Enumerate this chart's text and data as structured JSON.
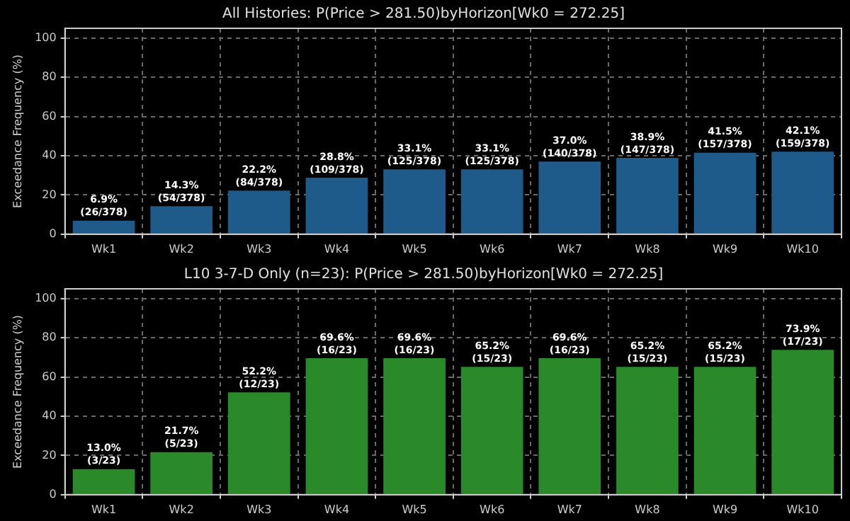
{
  "chart_data": [
    {
      "type": "bar",
      "title": "All Histories: P(Price > 281.50)byHorizon[Wk0 = 272.25]",
      "ylabel": "Exceedance Frequency (%)",
      "categories": [
        "Wk1",
        "Wk2",
        "Wk3",
        "Wk4",
        "Wk5",
        "Wk6",
        "Wk7",
        "Wk8",
        "Wk9",
        "Wk10"
      ],
      "values": [
        6.9,
        14.3,
        22.2,
        28.8,
        33.1,
        33.1,
        37.0,
        38.9,
        41.5,
        42.1
      ],
      "color": "#1f5b8a",
      "value_labels": [
        "6.9%\n(26/378)",
        "14.3%\n(54/378)",
        "22.2%\n(84/378)",
        "28.8%\n(109/378)",
        "33.1%\n(125/378)",
        "33.1%\n(125/378)",
        "37.0%\n(140/378)",
        "38.9%\n(147/378)",
        "41.5%\n(157/378)",
        "42.1%\n(159/378)"
      ],
      "ylim": [
        0,
        105
      ],
      "yticks": [
        0,
        20,
        40,
        60,
        80,
        100
      ],
      "grid": true
    },
    {
      "type": "bar",
      "title": "L10 3-7-D Only (n=23): P(Price > 281.50)byHorizon[Wk0 = 272.25]",
      "ylabel": "Exceedance Frequency (%)",
      "categories": [
        "Wk1",
        "Wk2",
        "Wk3",
        "Wk4",
        "Wk5",
        "Wk6",
        "Wk7",
        "Wk8",
        "Wk9",
        "Wk10"
      ],
      "values": [
        13.0,
        21.7,
        52.2,
        69.6,
        69.6,
        65.2,
        69.6,
        65.2,
        65.2,
        73.9
      ],
      "color": "#2a8a2a",
      "value_labels": [
        "13.0%\n(3/23)",
        "21.7%\n(5/23)",
        "52.2%\n(12/23)",
        "69.6%\n(16/23)",
        "69.6%\n(16/23)",
        "65.2%\n(15/23)",
        "69.6%\n(16/23)",
        "65.2%\n(15/23)",
        "65.2%\n(15/23)",
        "73.9%\n(17/23)"
      ],
      "ylim": [
        0,
        105
      ],
      "yticks": [
        0,
        20,
        40,
        60,
        80,
        100
      ],
      "grid": true
    }
  ]
}
